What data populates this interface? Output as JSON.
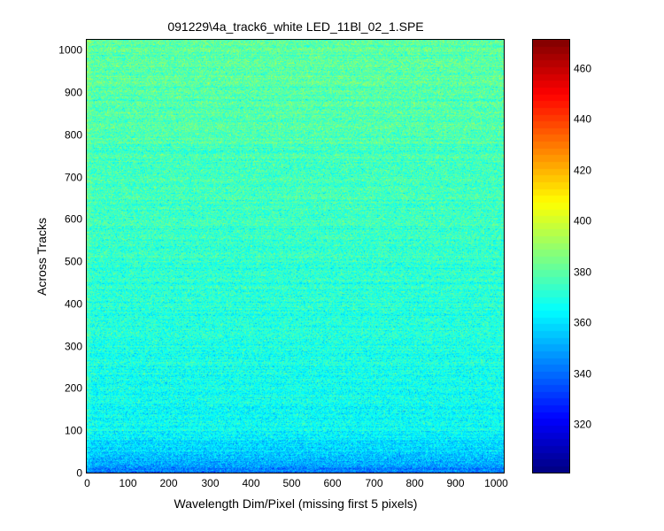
{
  "chart_data": {
    "type": "heatmap",
    "title": "091229\\4a_track6_white LED_11Bl_02_1.SPE",
    "xlabel": "Wavelength Dim/Pixel (missing first 5 pixels)",
    "ylabel": "Across Tracks",
    "xlim": [
      0,
      1019
    ],
    "ylim": [
      0,
      1024
    ],
    "x_ticks": [
      "0",
      "100",
      "200",
      "300",
      "400",
      "500",
      "600",
      "700",
      "800",
      "900",
      "1000"
    ],
    "y_ticks": [
      "0",
      "100",
      "200",
      "300",
      "400",
      "500",
      "600",
      "700",
      "800",
      "900",
      "1000"
    ],
    "colorbar": {
      "colormap": "jet",
      "range": [
        301,
        471
      ],
      "ticks": [
        "320",
        "340",
        "360",
        "380",
        "400",
        "420",
        "440",
        "460"
      ]
    },
    "intensity_profile_by_row": [
      {
        "y": 0,
        "mean": 340
      },
      {
        "y": 25,
        "mean": 352
      },
      {
        "y": 100,
        "mean": 365
      },
      {
        "y": 300,
        "mean": 370
      },
      {
        "y": 500,
        "mean": 373
      },
      {
        "y": 700,
        "mean": 376
      },
      {
        "y": 900,
        "mean": 379
      },
      {
        "y": 1024,
        "mean": 380
      }
    ],
    "grid": false
  }
}
